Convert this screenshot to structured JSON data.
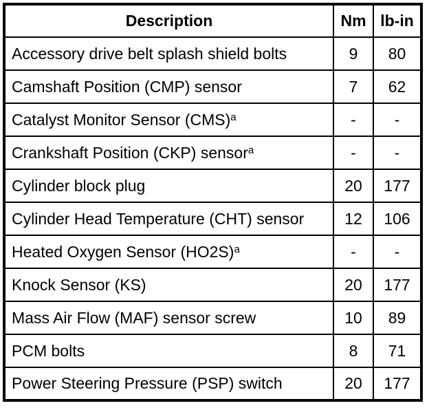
{
  "table": {
    "headers": {
      "description": "Description",
      "nm": "Nm",
      "lb_in": "lb-in"
    },
    "footnote_marker": "a",
    "colors": {
      "border": "#000000",
      "text": "#000000",
      "background": "#ffffff"
    },
    "rows": [
      {
        "description": "Accessory drive belt splash shield bolts",
        "sup": "",
        "nm": "9",
        "lb_in": "80"
      },
      {
        "description": "Camshaft Position (CMP) sensor",
        "sup": "",
        "nm": "7",
        "lb_in": "62"
      },
      {
        "description": "Catalyst Monitor Sensor (CMS)",
        "sup": "a",
        "nm": "-",
        "lb_in": "-"
      },
      {
        "description": "Crankshaft Position (CKP) sensor",
        "sup": "a",
        "nm": "-",
        "lb_in": "-"
      },
      {
        "description": "Cylinder block plug",
        "sup": "",
        "nm": "20",
        "lb_in": "177"
      },
      {
        "description": "Cylinder Head Temperature (CHT) sensor",
        "sup": "",
        "nm": "12",
        "lb_in": "106"
      },
      {
        "description": "Heated Oxygen Sensor (HO2S)",
        "sup": "a",
        "nm": "-",
        "lb_in": "-"
      },
      {
        "description": "Knock Sensor (KS)",
        "sup": "",
        "nm": "20",
        "lb_in": "177"
      },
      {
        "description": "Mass Air Flow (MAF) sensor screw",
        "sup": "",
        "nm": "10",
        "lb_in": "89"
      },
      {
        "description": "PCM bolts",
        "sup": "",
        "nm": "8",
        "lb_in": "71"
      },
      {
        "description": "Power Steering Pressure (PSP) switch",
        "sup": "",
        "nm": "20",
        "lb_in": "177"
      }
    ]
  }
}
